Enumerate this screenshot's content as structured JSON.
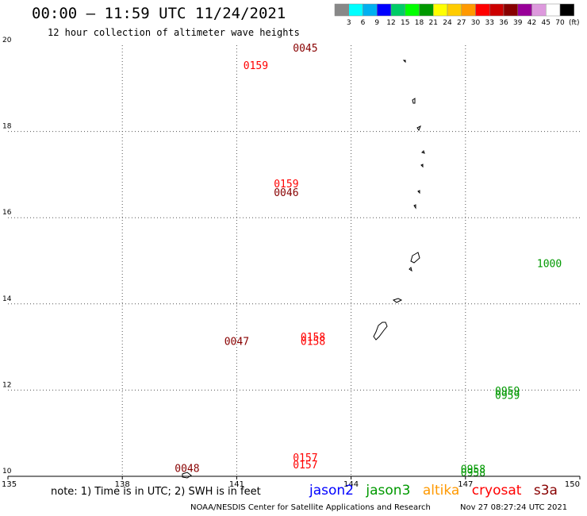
{
  "header": {
    "title": "00:00 – 11:59 UTC 11/24/2021",
    "subtitle": "12 hour collection of altimeter wave heights"
  },
  "legend_scale": {
    "colors": [
      "#888888",
      "#00ffff",
      "#00b0f0",
      "#0000ff",
      "#00cc66",
      "#00ff00",
      "#009900",
      "#ffff00",
      "#ffcc00",
      "#ff9900",
      "#ff0000",
      "#cc0000",
      "#880000",
      "#990099",
      "#dd99dd",
      "#ffffff",
      "#000000"
    ],
    "labels": [
      "3",
      "6",
      "9",
      "12",
      "15",
      "18",
      "21",
      "24",
      "27",
      "30",
      "33",
      "36",
      "39",
      "42",
      "45",
      "70",
      "(ft)"
    ]
  },
  "chart_data": {
    "type": "scatter",
    "title": "00:00 – 11:59 UTC 11/24/2021",
    "subtitle": "12 hour collection of altimeter wave heights",
    "x_ticks": [
      "135",
      "138",
      "141",
      "144",
      "147",
      "150"
    ],
    "y_ticks": [
      "10",
      "12",
      "14",
      "16",
      "18",
      "20"
    ],
    "xlim": [
      135,
      150
    ],
    "ylim": [
      10,
      20
    ],
    "grid": true,
    "series": [
      {
        "name": "jason2",
        "color": "#0000ff",
        "values": []
      },
      {
        "name": "jason3",
        "color": "#009900",
        "values": []
      },
      {
        "name": "altika",
        "color": "#ff9900",
        "values": []
      },
      {
        "name": "cryosat",
        "color": "#ff0000",
        "values": []
      },
      {
        "name": "s3a",
        "color": "#880000",
        "values": []
      }
    ],
    "track_points": [],
    "time_labels": [
      {
        "text": "0045",
        "x": 142.8,
        "y": 19.85,
        "color": "#880000"
      },
      {
        "text": "0159",
        "x": 141.5,
        "y": 19.45,
        "color": "#ff0000"
      },
      {
        "text": "0159",
        "x": 142.3,
        "y": 16.7,
        "color": "#ff0000"
      },
      {
        "text": "0046",
        "x": 142.3,
        "y": 16.5,
        "color": "#880000"
      },
      {
        "text": "0158",
        "x": 143.0,
        "y": 13.15,
        "color": "#ff0000"
      },
      {
        "text": "0158",
        "x": 143.0,
        "y": 13.05,
        "color": "#ff0000"
      },
      {
        "text": "0047",
        "x": 141.0,
        "y": 13.05,
        "color": "#880000"
      },
      {
        "text": "0157",
        "x": 142.8,
        "y": 10.35,
        "color": "#ff0000"
      },
      {
        "text": "0157",
        "x": 142.8,
        "y": 10.18,
        "color": "#ff0000"
      },
      {
        "text": "0048",
        "x": 139.7,
        "y": 10.1,
        "color": "#880000"
      },
      {
        "text": "1000",
        "x": 149.2,
        "y": 14.85,
        "color": "#009900"
      },
      {
        "text": "0959",
        "x": 148.1,
        "y": 11.9,
        "color": "#009900"
      },
      {
        "text": "0959",
        "x": 148.1,
        "y": 11.8,
        "color": "#009900"
      },
      {
        "text": "0958",
        "x": 147.2,
        "y": 10.08,
        "color": "#009900"
      },
      {
        "text": "0958",
        "x": 147.2,
        "y": 10.0,
        "color": "#009900"
      }
    ]
  },
  "footer": {
    "note": "note: 1) Time is in UTC; 2) SWH is in feet",
    "credit": "NOAA/NESDIS Center for Satellite Applications and Research",
    "timestamp": "Nov 27 08:27:24 UTC 2021"
  }
}
